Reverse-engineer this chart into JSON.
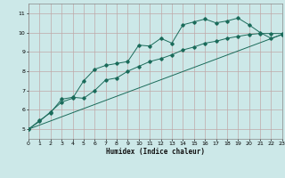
{
  "xlabel": "Humidex (Indice chaleur)",
  "bg_color": "#cce8e8",
  "grid_color": "#c0a8a8",
  "line_color": "#1a6b5a",
  "xlim": [
    0,
    23
  ],
  "ylim": [
    4.5,
    11.5
  ],
  "xticks": [
    0,
    1,
    2,
    3,
    4,
    5,
    6,
    7,
    8,
    9,
    10,
    11,
    12,
    13,
    14,
    15,
    16,
    17,
    18,
    19,
    20,
    21,
    22,
    23
  ],
  "yticks": [
    5,
    6,
    7,
    8,
    9,
    10,
    11
  ],
  "series1_x": [
    0,
    1,
    2,
    3,
    4,
    5,
    6,
    7,
    8,
    9,
    10,
    11,
    12,
    13,
    14,
    15,
    16,
    17,
    18,
    19,
    20,
    21,
    22,
    23
  ],
  "series1_y": [
    5.0,
    5.4,
    5.9,
    6.4,
    6.6,
    7.5,
    8.1,
    8.3,
    8.4,
    8.5,
    9.35,
    9.3,
    9.7,
    9.45,
    10.4,
    10.55,
    10.7,
    10.5,
    10.6,
    10.75,
    10.4,
    10.0,
    9.7,
    9.9
  ],
  "series2_x": [
    0,
    1,
    2,
    3,
    4,
    5,
    6,
    7,
    8,
    9,
    10,
    11,
    12,
    13,
    14,
    15,
    16,
    17,
    18,
    19,
    20,
    21,
    22,
    23
  ],
  "series2_y": [
    5.0,
    5.45,
    5.85,
    6.55,
    6.65,
    6.6,
    7.0,
    7.55,
    7.65,
    8.0,
    8.25,
    8.5,
    8.65,
    8.85,
    9.1,
    9.25,
    9.45,
    9.55,
    9.7,
    9.8,
    9.9,
    9.95,
    9.95,
    9.95
  ],
  "series3_x": [
    0,
    23
  ],
  "series3_y": [
    5.0,
    9.9
  ]
}
